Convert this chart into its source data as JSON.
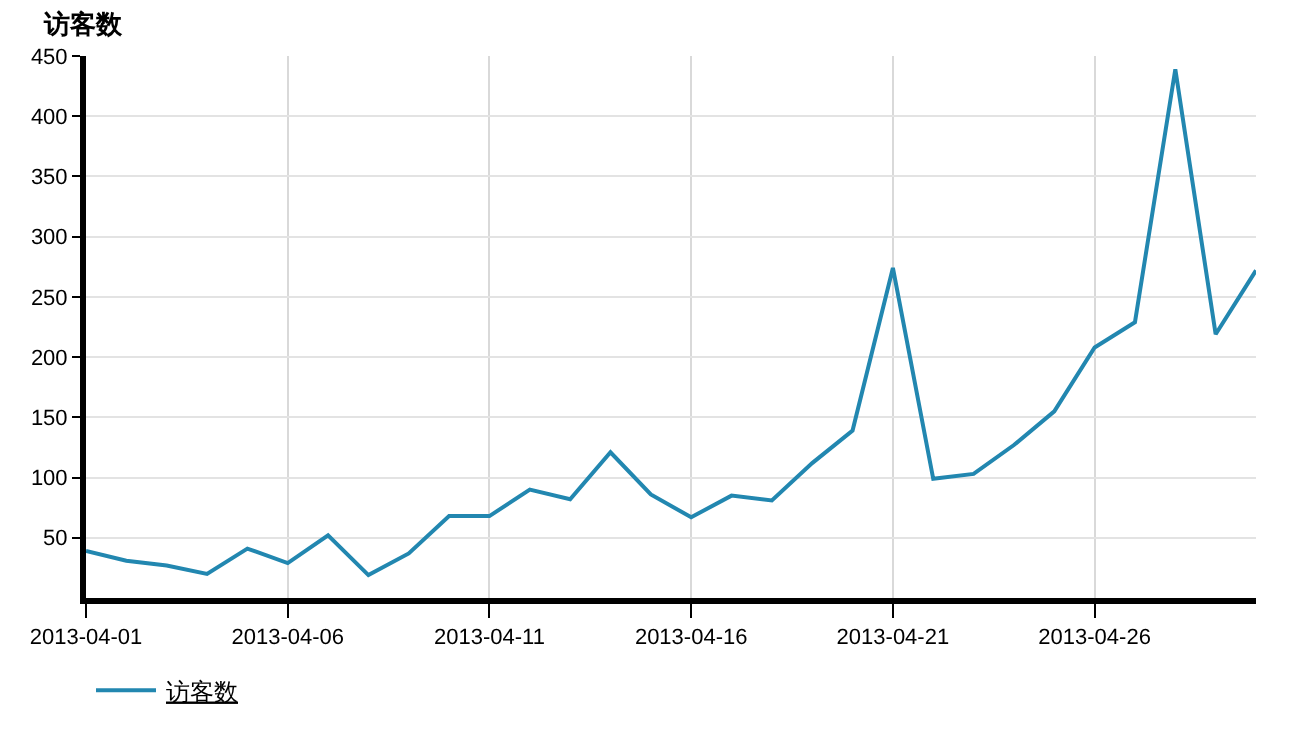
{
  "chart_data": {
    "type": "line",
    "title": "访客数",
    "x": [
      "2013-04-01",
      "2013-04-02",
      "2013-04-03",
      "2013-04-04",
      "2013-04-05",
      "2013-04-06",
      "2013-04-07",
      "2013-04-08",
      "2013-04-09",
      "2013-04-10",
      "2013-04-11",
      "2013-04-12",
      "2013-04-13",
      "2013-04-14",
      "2013-04-15",
      "2013-04-16",
      "2013-04-17",
      "2013-04-18",
      "2013-04-19",
      "2013-04-20",
      "2013-04-21",
      "2013-04-22",
      "2013-04-23",
      "2013-04-24",
      "2013-04-25",
      "2013-04-26",
      "2013-04-27",
      "2013-04-28",
      "2013-04-29",
      "2013-04-30"
    ],
    "series": [
      {
        "name": "访客数",
        "color": "#2287b0",
        "values": [
          39,
          31,
          27,
          20,
          41,
          29,
          52,
          19,
          37,
          68,
          68,
          90,
          82,
          121,
          86,
          67,
          85,
          81,
          112,
          139,
          274,
          99,
          103,
          127,
          155,
          208,
          229,
          439,
          219,
          272
        ]
      }
    ],
    "xlim": [
      "2013-04-01",
      "2013-04-30"
    ],
    "xticks": [
      "2013-04-01",
      "2013-04-06",
      "2013-04-11",
      "2013-04-16",
      "2013-04-21",
      "2013-04-26"
    ],
    "ylim": [
      0,
      450
    ],
    "yticks": [
      50,
      100,
      150,
      200,
      250,
      300,
      350,
      400,
      450
    ],
    "grid": true,
    "legend": "bottom left"
  }
}
